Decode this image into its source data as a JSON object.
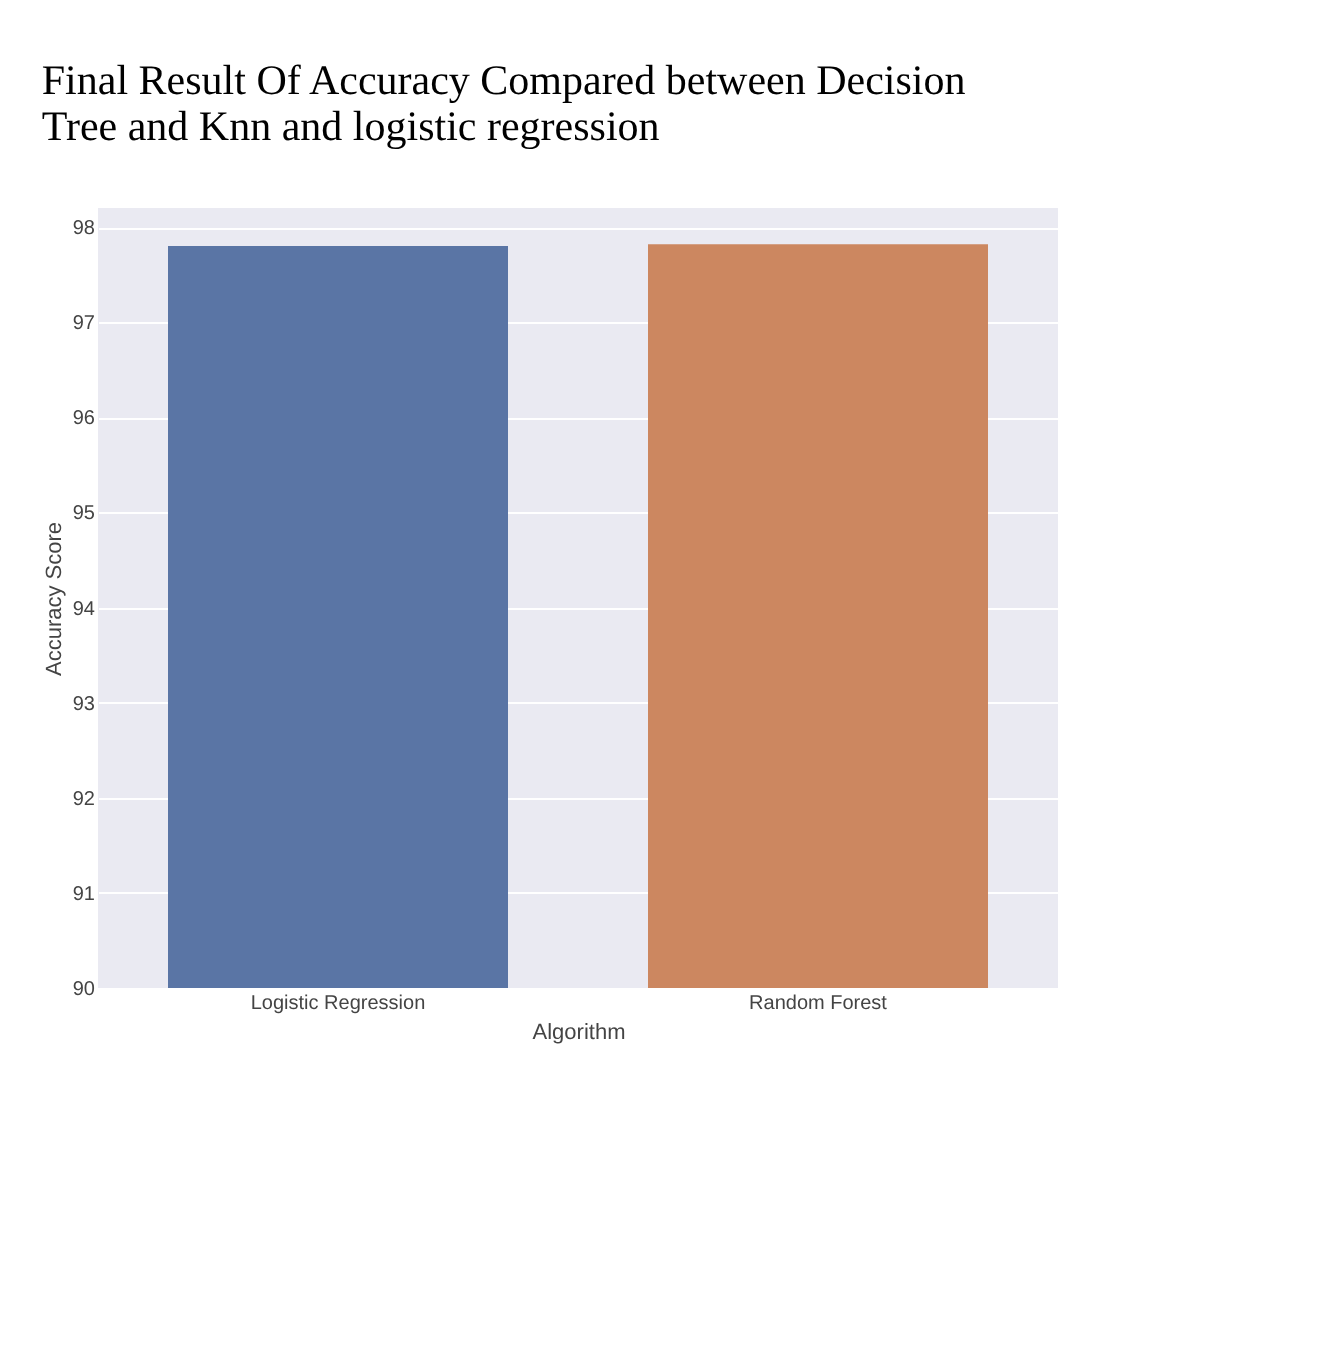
{
  "chart_data": {
    "type": "bar",
    "title": [
      "Final Result Of Accuracy Compared between Decision",
      "Tree and Knn and logistic regression"
    ],
    "xlabel": "Algorithm",
    "ylabel": "Accuracy Score",
    "categories": [
      "Logistic Regression",
      "Random Forest"
    ],
    "values": [
      97.8,
      97.82
    ],
    "colors": [
      "#5a75a5",
      "#cc8760"
    ],
    "ylim": [
      90,
      98.2
    ],
    "yticks": [
      90,
      91,
      92,
      93,
      94,
      95,
      96,
      97,
      98
    ],
    "grid": "y"
  }
}
